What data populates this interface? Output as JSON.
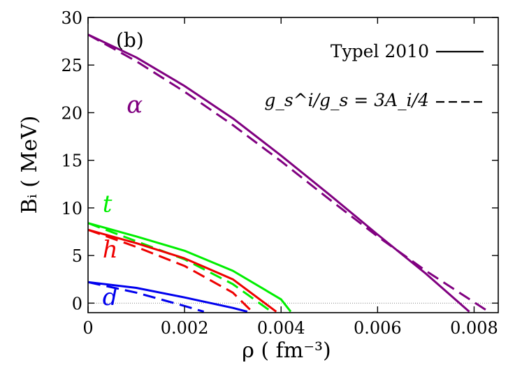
{
  "chart_data": {
    "type": "line",
    "panel_label": "(b)",
    "xlabel": "ρ ( fm⁻³)",
    "ylabel": "Bᵢ ( MeV)",
    "xlim": [
      0,
      0.0085
    ],
    "ylim": [
      -1,
      30
    ],
    "x_ticks": [
      {
        "value": 0,
        "label": "0"
      },
      {
        "value": 0.002,
        "label": "0.002"
      },
      {
        "value": 0.004,
        "label": "0.004"
      },
      {
        "value": 0.006,
        "label": "0.006"
      },
      {
        "value": 0.008,
        "label": "0.008"
      }
    ],
    "y_ticks": [
      {
        "value": 0,
        "label": "0"
      },
      {
        "value": 5,
        "label": "5"
      },
      {
        "value": 10,
        "label": "10"
      },
      {
        "value": 15,
        "label": "15"
      },
      {
        "value": 20,
        "label": "20"
      },
      {
        "value": 25,
        "label": "25"
      },
      {
        "value": 30,
        "label": "30"
      }
    ],
    "zero_line": true,
    "grid": false,
    "legend_position": "top-right",
    "legend": [
      {
        "label": "Typel 2010",
        "style": "solid"
      },
      {
        "label": "g_s^i/g_s = 3A_i/4",
        "style": "dashed"
      }
    ],
    "series": [
      {
        "name": "α",
        "color": "#800080",
        "style": "solid",
        "x": [
          0,
          0.001,
          0.002,
          0.003,
          0.004,
          0.005,
          0.006,
          0.007,
          0.0079
        ],
        "y": [
          28.2,
          25.8,
          22.8,
          19.4,
          15.5,
          11.4,
          7.2,
          3.1,
          -0.9
        ]
      },
      {
        "name": "α",
        "color": "#800080",
        "style": "dashed",
        "x": [
          0,
          0.001,
          0.002,
          0.003,
          0.004,
          0.005,
          0.006,
          0.007,
          0.0083
        ],
        "y": [
          28.2,
          25.4,
          22.2,
          18.7,
          14.9,
          10.9,
          7.0,
          3.4,
          -0.9
        ]
      },
      {
        "name": "t",
        "color": "#00ee00",
        "style": "solid",
        "x": [
          0,
          0.001,
          0.002,
          0.003,
          0.004,
          0.0042
        ],
        "y": [
          8.4,
          7.0,
          5.5,
          3.4,
          0.4,
          -0.9
        ]
      },
      {
        "name": "t",
        "color": "#00ee00",
        "style": "dashed",
        "x": [
          0,
          0.001,
          0.002,
          0.003,
          0.0038
        ],
        "y": [
          8.4,
          6.5,
          4.6,
          2.0,
          -0.9
        ]
      },
      {
        "name": "h",
        "color": "#ee0000",
        "style": "solid",
        "x": [
          0,
          0.001,
          0.002,
          0.003,
          0.0039
        ],
        "y": [
          7.7,
          6.3,
          4.7,
          2.5,
          -0.9
        ]
      },
      {
        "name": "h",
        "color": "#ee0000",
        "style": "dashed",
        "x": [
          0,
          0.001,
          0.002,
          0.003,
          0.0034
        ],
        "y": [
          7.7,
          5.9,
          3.9,
          1.1,
          -0.9
        ]
      },
      {
        "name": "d",
        "color": "#0000ee",
        "style": "solid",
        "x": [
          0,
          0.001,
          0.002,
          0.003,
          0.0033
        ],
        "y": [
          2.2,
          1.6,
          0.6,
          -0.5,
          -0.9
        ]
      },
      {
        "name": "d",
        "color": "#0000ee",
        "style": "dashed",
        "x": [
          0,
          0.001,
          0.002,
          0.0024
        ],
        "y": [
          2.2,
          1.1,
          -0.3,
          -0.9
        ]
      }
    ],
    "series_labels": [
      {
        "text": "α",
        "color": "#800080",
        "x": 0.0008,
        "y": 20
      },
      {
        "text": "t",
        "color": "#00ee00",
        "x": 0.0003,
        "y": 9.6
      },
      {
        "text": "h",
        "color": "#ee0000",
        "x": 0.0003,
        "y": 4.8
      },
      {
        "text": "d",
        "color": "#0000ee",
        "x": 0.0003,
        "y": -0.2
      }
    ]
  }
}
